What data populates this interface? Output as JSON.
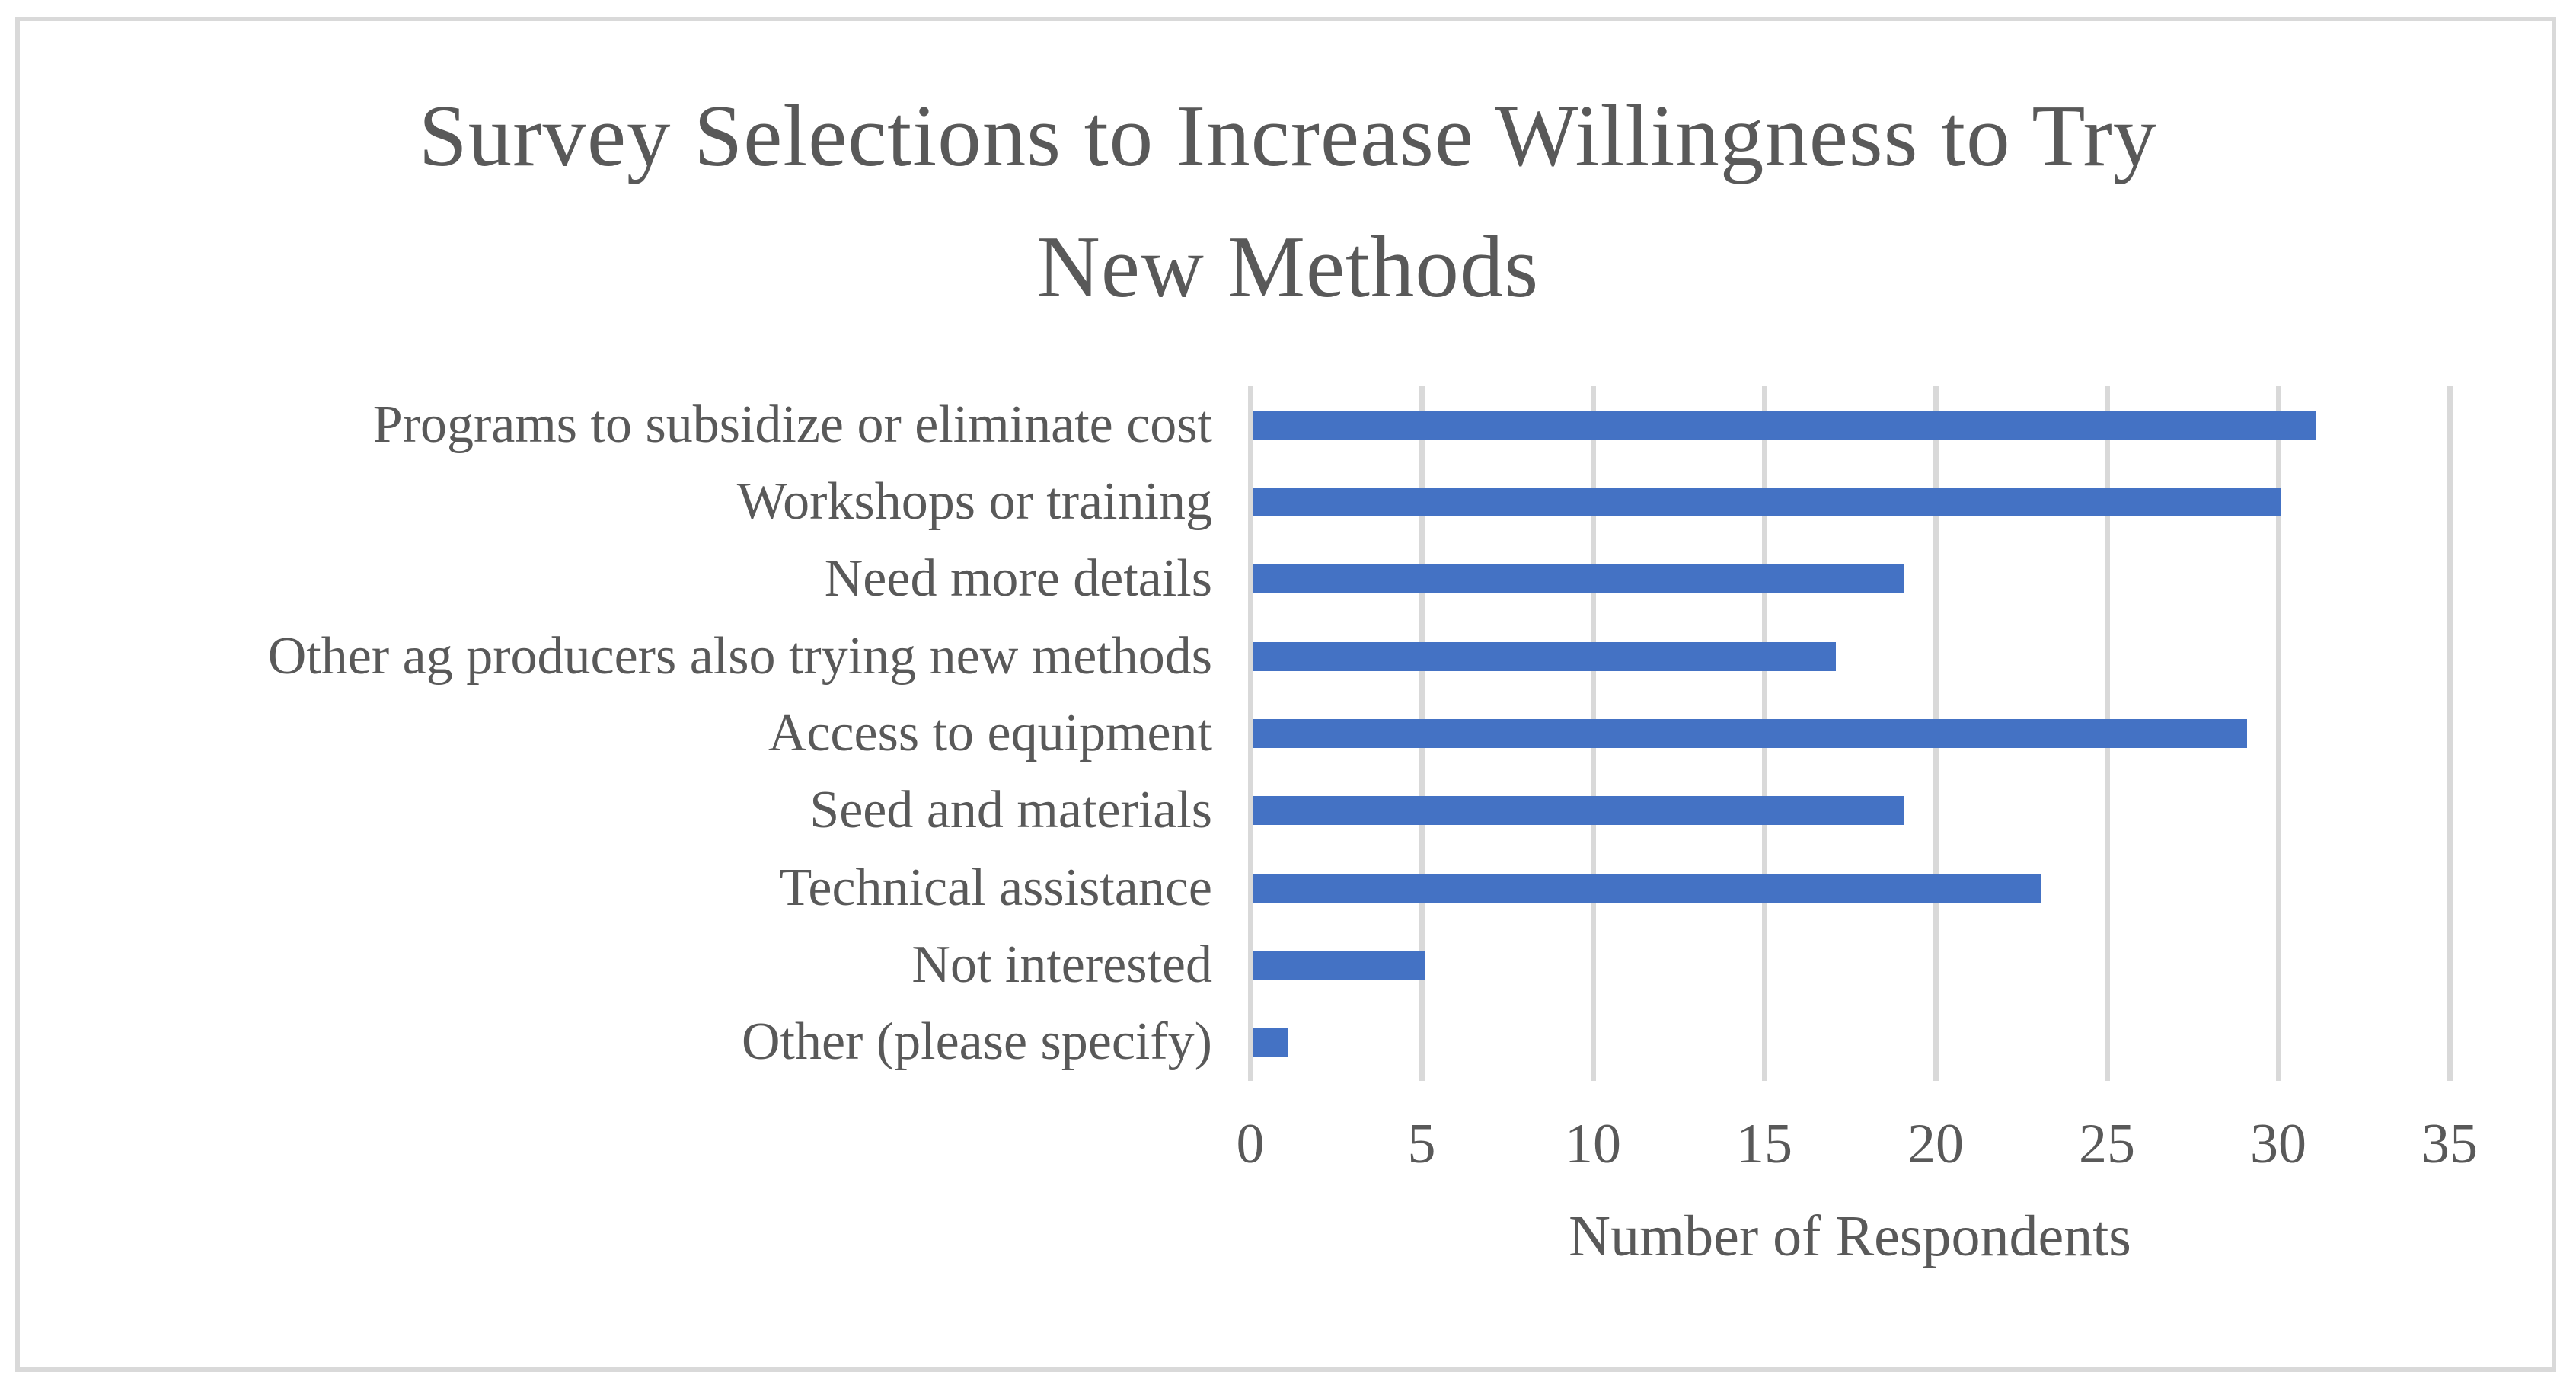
{
  "page": {
    "background": "#FFFFFF",
    "border_color": "#D9D9D9"
  },
  "chart_data": {
    "type": "bar",
    "orientation": "horizontal",
    "title": "Survey Selections to Increase Willingness to Try New Methods",
    "title_lines": [
      "Survey Selections to Increase Willingness to Try",
      "New Methods"
    ],
    "categories": [
      "Programs to subsidize or eliminate cost",
      "Workshops or training",
      "Need more details",
      "Other ag producers also trying new methods",
      "Access to equipment",
      "Seed and materials",
      "Technical assistance",
      "Not interested",
      "Other (please specify)"
    ],
    "values": [
      31,
      30,
      19,
      17,
      29,
      19,
      23,
      5,
      1
    ],
    "xlabel": "Number of Respondents",
    "x_ticks": [
      "0",
      "5",
      "10",
      "15",
      "20",
      "25",
      "30",
      "35"
    ],
    "xlim": [
      0,
      35
    ],
    "grid": "vertical-only",
    "legend": "none",
    "colors": {
      "bar": "#4472C4",
      "gridline": "#D9D9D9",
      "text": "#595959"
    }
  }
}
